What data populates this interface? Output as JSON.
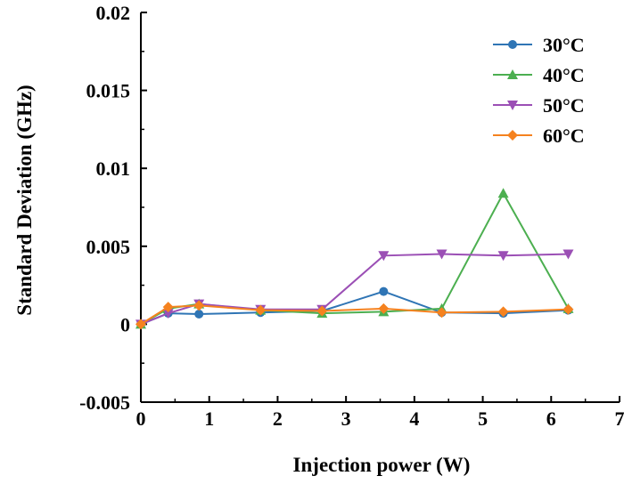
{
  "chart_data": {
    "type": "line",
    "xlabel": "Injection power (W)",
    "ylabel": "Standard Deviation (GHz)",
    "xlim": [
      0,
      7
    ],
    "ylim": [
      -0.005,
      0.02
    ],
    "xticks": [
      0,
      1,
      2,
      3,
      4,
      5,
      6,
      7
    ],
    "xtick_labels": [
      "0",
      "1",
      "2",
      "3",
      "4",
      "5",
      "6",
      "7"
    ],
    "yticks": [
      -0.005,
      0,
      0.005,
      0.01,
      0.015,
      0.02
    ],
    "ytick_labels": [
      "-0.005",
      "0",
      "0.005",
      "0.01",
      "0.015",
      "0.02"
    ],
    "grid": false,
    "legend_position": "top-right",
    "x": [
      0,
      0.4,
      0.85,
      1.75,
      2.65,
      3.55,
      4.4,
      5.3,
      6.25
    ],
    "series": [
      {
        "name": "30°C",
        "color": "#2f75b5",
        "marker": "circle",
        "values": [
          0,
          0.0007,
          0.00065,
          0.00075,
          0.00085,
          0.0021,
          0.00075,
          0.0007,
          0.0009
        ]
      },
      {
        "name": "40°C",
        "color": "#4caf50",
        "marker": "triangle-up",
        "values": [
          0,
          0.001,
          0.0013,
          0.0009,
          0.0007,
          0.0008,
          0.001,
          0.0084,
          0.001
        ]
      },
      {
        "name": "50°C",
        "color": "#9b4fb5",
        "marker": "triangle-down",
        "values": [
          0,
          0.0007,
          0.0013,
          0.00095,
          0.00095,
          0.0044,
          0.0045,
          0.0044,
          0.0045
        ]
      },
      {
        "name": "60°C",
        "color": "#f5821f",
        "marker": "diamond",
        "values": [
          0,
          0.0011,
          0.0012,
          0.0009,
          0.00085,
          0.001,
          0.00075,
          0.0008,
          0.00095
        ]
      }
    ]
  }
}
